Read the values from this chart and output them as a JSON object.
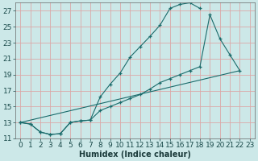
{
  "xlabel": "Humidex (Indice chaleur)",
  "bg_color": "#cce8e8",
  "grid_color": "#dba8a8",
  "line_color": "#1a6b6b",
  "xlim": [
    -0.5,
    23.5
  ],
  "ylim": [
    11,
    28
  ],
  "xticks": [
    0,
    1,
    2,
    3,
    4,
    5,
    6,
    7,
    8,
    9,
    10,
    11,
    12,
    13,
    14,
    15,
    16,
    17,
    18,
    19,
    20,
    21,
    22,
    23
  ],
  "yticks": [
    11,
    13,
    15,
    17,
    19,
    21,
    23,
    25,
    27
  ],
  "curve1_x": [
    0,
    1,
    2,
    3,
    4,
    5,
    6,
    7,
    8,
    9,
    10,
    11,
    12,
    13,
    14,
    15,
    16,
    17,
    18
  ],
  "curve1_y": [
    13,
    12.8,
    11.8,
    11.5,
    11.6,
    13.0,
    13.2,
    13.3,
    16.2,
    17.8,
    19.2,
    21.2,
    22.5,
    23.8,
    25.2,
    27.3,
    27.8,
    28.0,
    27.3
  ],
  "curve2_x": [
    0,
    1,
    2,
    3,
    4,
    5,
    6,
    7,
    8,
    9,
    10,
    11,
    12,
    13,
    14,
    15,
    16,
    17,
    18,
    19,
    20,
    21,
    22
  ],
  "curve2_y": [
    13,
    12.8,
    11.8,
    11.5,
    11.6,
    13.0,
    13.2,
    13.3,
    14.5,
    15.0,
    15.5,
    16.0,
    16.5,
    17.2,
    18.0,
    18.5,
    19.0,
    19.5,
    20.0,
    26.5,
    23.5,
    21.5,
    19.5
  ],
  "curve3_x": [
    0,
    22
  ],
  "curve3_y": [
    13,
    19.5
  ],
  "xlabel_fontsize": 7,
  "tick_fontsize": 6.5
}
